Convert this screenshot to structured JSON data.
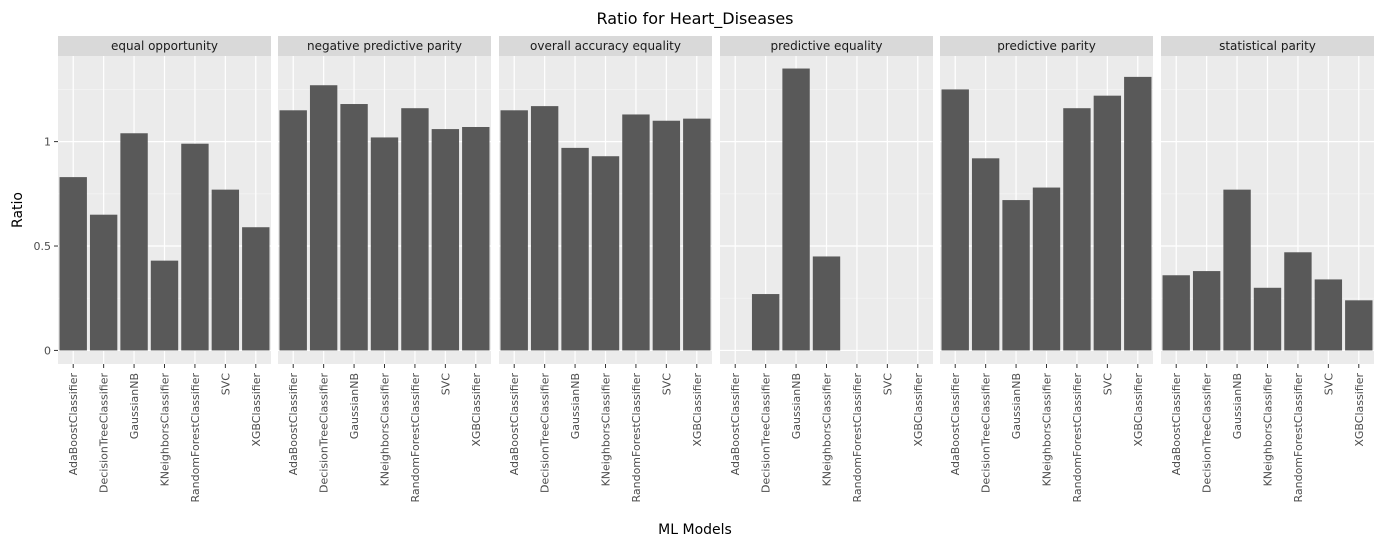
{
  "chart_data": {
    "type": "bar",
    "title": "Ratio for Heart_Diseases",
    "xlabel": "ML Models",
    "ylabel": "Ratio",
    "ylim": [
      -0.065,
      1.41
    ],
    "yticks": [
      0,
      0.5,
      1
    ],
    "ytick_labels": [
      "0",
      "0.5",
      "1"
    ],
    "grid": true,
    "categories": [
      "AdaBoostClassifier",
      "DecisionTreeClassifier",
      "GaussianNB",
      "KNeighborsClassifier",
      "RandomForestClassifier",
      "SVC",
      "XGBClassifier"
    ],
    "facets": [
      {
        "name": "equal opportunity",
        "values": [
          0.83,
          0.65,
          1.04,
          0.43,
          0.99,
          0.77,
          0.59
        ]
      },
      {
        "name": "negative predictive parity",
        "values": [
          1.15,
          1.27,
          1.18,
          1.02,
          1.16,
          1.06,
          1.07
        ]
      },
      {
        "name": "overall accuracy equality",
        "values": [
          1.15,
          1.17,
          0.97,
          0.93,
          1.13,
          1.1,
          1.11
        ]
      },
      {
        "name": "predictive equality",
        "values": [
          0,
          0.27,
          1.35,
          0.45,
          0,
          0,
          0
        ]
      },
      {
        "name": "predictive parity",
        "values": [
          1.25,
          0.92,
          0.72,
          0.78,
          1.16,
          1.22,
          1.31
        ]
      },
      {
        "name": "statistical parity",
        "values": [
          0.36,
          0.38,
          0.77,
          0.3,
          0.47,
          0.34,
          0.24
        ]
      }
    ],
    "colors": {
      "bar": "#595959",
      "panel": "#ebebeb",
      "strip": "#d9d9d9",
      "grid_major": "#ffffff",
      "text": "#000000",
      "tick_text": "#4d4d4d"
    }
  }
}
